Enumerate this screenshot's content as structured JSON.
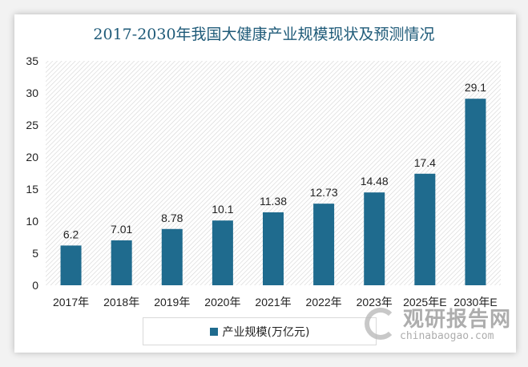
{
  "chart_data": {
    "type": "bar",
    "title": "2017-2030年我国大健康产业规模现状及预测情况",
    "categories": [
      "2017年",
      "2018年",
      "2019年",
      "2020年",
      "2021年",
      "2022年",
      "2023年",
      "2025年E",
      "2030年E"
    ],
    "series": [
      {
        "name": "产业规模(万亿元)",
        "values": [
          6.2,
          7.01,
          8.78,
          10.1,
          11.38,
          12.73,
          14.48,
          17.4,
          29.1
        ]
      }
    ],
    "data_labels": [
      "6.2",
      "7.01",
      "8.78",
      "10.1",
      "11.38",
      "12.73",
      "14.48",
      "17.4",
      "29.1"
    ],
    "ylim": [
      0,
      35
    ],
    "yticks": [
      0,
      5,
      10,
      15,
      20,
      25,
      30,
      35
    ],
    "grid": false,
    "legend": "bottom",
    "bar_color": "#1f6b8e"
  },
  "watermark": {
    "name": "观研报告网",
    "url": "chinabaogao.com"
  }
}
